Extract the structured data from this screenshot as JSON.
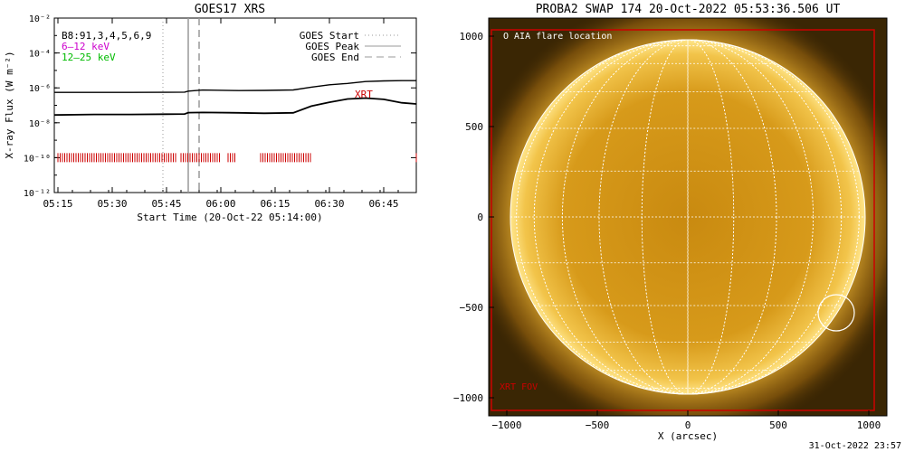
{
  "footer_timestamp": "31-Oct-2022 23:57",
  "chart_data": [
    {
      "type": "line",
      "title": "GOES17 XRS",
      "xlabel": "Start Time (20-Oct-22 05:14:00)",
      "ylabel": "X-ray Flux (W m⁻²)",
      "y_scale": "log",
      "xlim": [
        "05:14",
        "06:54"
      ],
      "ylim": [
        1e-12,
        0.01
      ],
      "x_ticks": [
        "05:15",
        "05:30",
        "05:45",
        "06:00",
        "06:15",
        "06:30",
        "06:45"
      ],
      "y_ticks": [
        "10⁻¹²",
        "10⁻¹⁰",
        "10⁻⁸",
        "10⁻⁶",
        "10⁻⁴",
        "10⁻²"
      ],
      "legend_top_left": [
        {
          "label": "B8:91,3,4,5,6,9",
          "color": "#000000"
        },
        {
          "label": "6–12 keV",
          "color": "#cc00cc"
        },
        {
          "label": "12–25 keV",
          "color": "#00bb00"
        }
      ],
      "legend_top_right": [
        {
          "label": "GOES Start",
          "style": "dotted"
        },
        {
          "label": "GOES Peak",
          "style": "solid"
        },
        {
          "label": "GOES End",
          "style": "dashed"
        }
      ],
      "series": [
        {
          "x": [
            "05:14",
            "05:25",
            "05:35",
            "05:45",
            "05:50",
            "05:51",
            "05:55",
            "06:05",
            "06:12",
            "06:20",
            "06:25",
            "06:30",
            "06:35",
            "06:40",
            "06:45",
            "06:50",
            "06:54"
          ],
          "values": [
            5.5e-07,
            5.5e-07,
            5.5e-07,
            5.6e-07,
            5.7e-07,
            6.5e-07,
            7.5e-07,
            7e-07,
            7.2e-07,
            7.6e-07,
            1.1e-06,
            1.5e-06,
            1.8e-06,
            2.3e-06,
            2.5e-06,
            2.6e-06,
            2.6e-06
          ]
        },
        {
          "x": [
            "05:14",
            "05:25",
            "05:35",
            "05:45",
            "05:50",
            "05:51",
            "05:55",
            "06:05",
            "06:12",
            "06:20",
            "06:25",
            "06:30",
            "06:35",
            "06:40",
            "06:45",
            "06:50",
            "06:54"
          ],
          "values": [
            2.8e-08,
            3e-08,
            3e-08,
            3.1e-08,
            3.2e-08,
            3.8e-08,
            3.9e-08,
            3.7e-08,
            3.5e-08,
            3.7e-08,
            9e-08,
            1.5e-07,
            2.3e-07,
            2.6e-07,
            2.2e-07,
            1.4e-07,
            1.2e-07
          ]
        }
      ],
      "goes_events": {
        "start": "05:44",
        "peak": "05:51",
        "end": "05:54"
      },
      "xrt_label": "XRT",
      "xrt_obs_segments": [
        [
          "05:15",
          "05:48"
        ],
        [
          "05:49",
          "06:00"
        ],
        [
          "06:02",
          "06:04"
        ],
        [
          "06:11",
          "06:25"
        ],
        [
          "06:54",
          "06:54"
        ]
      ]
    },
    {
      "type": "image",
      "title": "PROBA2 SWAP 174 20-Oct-2022 05:53:36.506 UT",
      "xlabel": "X (arcsec)",
      "xlim": [
        -1100,
        1100
      ],
      "ylim": [
        -1100,
        1100
      ],
      "x_ticks": [
        -1000,
        -500,
        0,
        500,
        1000
      ],
      "y_ticks": [
        -1000,
        -500,
        0,
        500,
        1000
      ],
      "annotations": [
        "O AIA flare location",
        "XRT FOV"
      ],
      "flare_location": [
        820,
        -530
      ],
      "xrt_fov": [
        [
          -1150,
          -1150
        ],
        [
          1050,
          1050
        ]
      ],
      "solar_radius_arcsec": 980
    }
  ]
}
